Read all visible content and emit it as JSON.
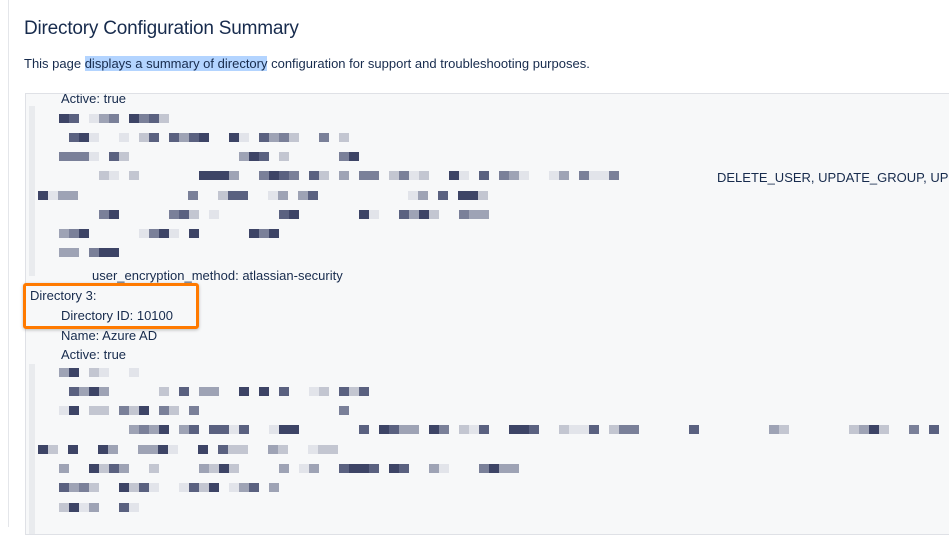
{
  "page": {
    "title": "Directory Configuration Summary",
    "description_before": "This page ",
    "description_highlight": "displays a summary of directory",
    "description_after": " configuration for support and troubleshooting purposes."
  },
  "config": {
    "dir2_active": "Active: true",
    "dir2_permissions_tail": "DELETE_USER, UPDATE_GROUP, UP",
    "dir2_encryption": "user_encryption_method: atlassian-security",
    "dir3_header": "Directory 3:",
    "dir3_id": "Directory ID: 10100",
    "dir3_name": "Name: Azure AD",
    "dir3_active": "Active: true"
  },
  "colors": {
    "highlight_box": "#ff7a00",
    "text_selection": "#b3d4ff"
  }
}
